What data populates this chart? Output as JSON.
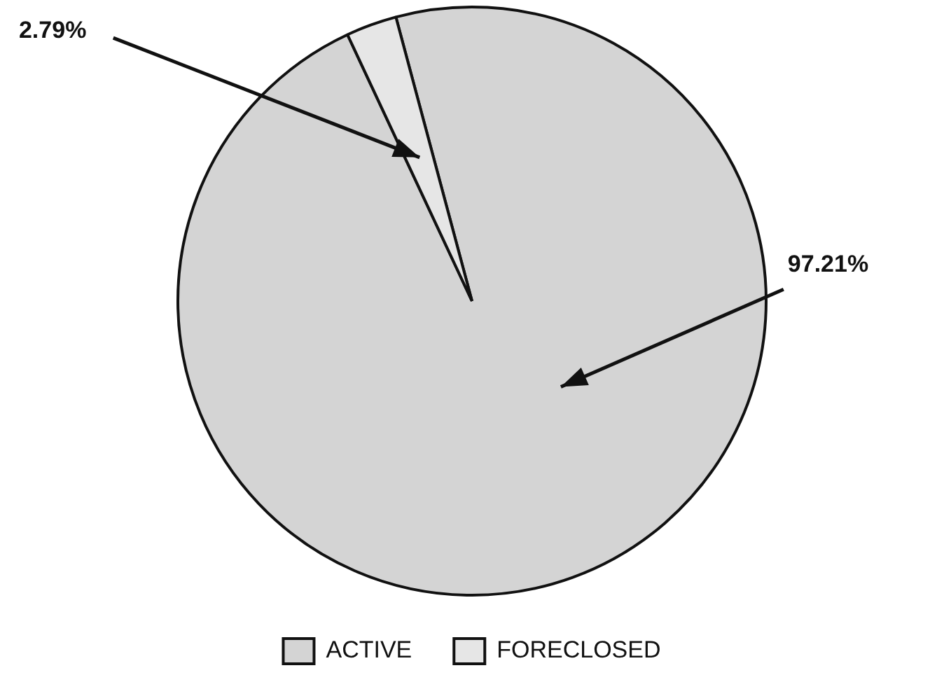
{
  "chart_data": {
    "type": "pie",
    "categories": [
      "ACTIVE",
      "FORECLOSED"
    ],
    "values": [
      97.21,
      2.79
    ],
    "colors": [
      "#d4d4d4",
      "#e6e6e6"
    ],
    "value_labels": [
      "97.21%",
      "2.79%"
    ],
    "legend": "bottom"
  }
}
